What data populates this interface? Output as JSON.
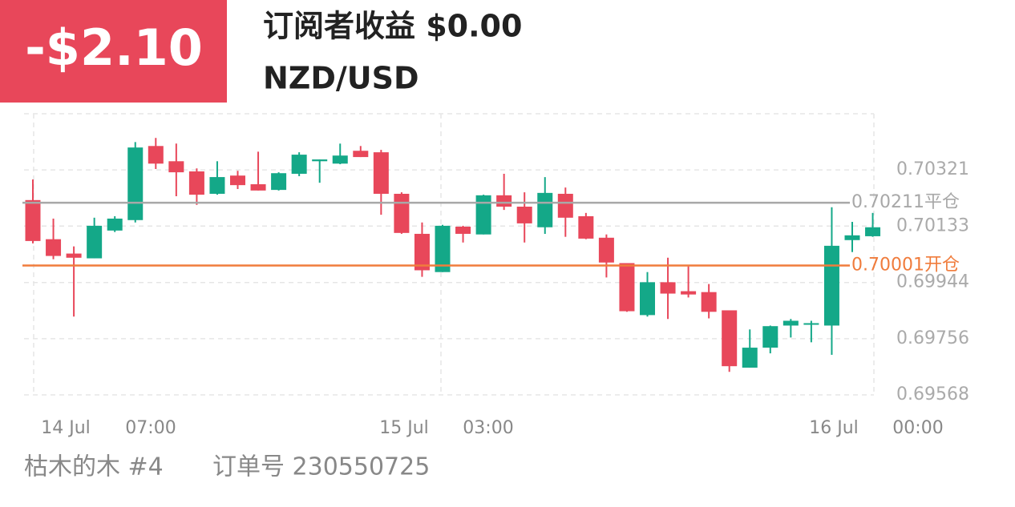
{
  "header": {
    "profit": "-$2.10",
    "title": "订阅者收益 $0.00",
    "symbol": "NZD/USD"
  },
  "footer": {
    "account": "枯木的木 #4",
    "order": "订单号 230550725"
  },
  "chart_data": {
    "type": "candlestick",
    "open": [
      0.7022,
      0.70089,
      0.70041,
      0.70025,
      0.70118,
      0.70153,
      0.70401,
      0.7035,
      0.70316,
      0.70241,
      0.70302,
      0.70273,
      0.70254,
      0.70308,
      0.7035,
      0.70342,
      0.70385,
      0.7038,
      0.70241,
      0.70107,
      0.69979,
      0.70131,
      0.70105,
      0.70236,
      0.70198,
      0.70129,
      0.70241,
      0.70166,
      0.70094,
      0.70009,
      0.69835,
      0.69945,
      0.69915,
      0.69912,
      0.69851,
      0.69659,
      0.69726,
      0.698,
      0.69803,
      0.698,
      0.70086,
      0.70099
    ],
    "high": [
      0.70289,
      0.70158,
      0.70065,
      0.70161,
      0.70166,
      0.70414,
      0.70428,
      0.70409,
      0.70326,
      0.7035,
      0.70318,
      0.70382,
      0.70313,
      0.7038,
      0.70356,
      0.70409,
      0.70401,
      0.70388,
      0.70246,
      0.70145,
      0.70137,
      0.70134,
      0.70238,
      0.70308,
      0.70246,
      0.70297,
      0.70262,
      0.70177,
      0.70105,
      0.70009,
      0.69979,
      0.70027,
      0.69998,
      0.69939,
      0.69851,
      0.69787,
      0.698,
      0.69822,
      0.69816,
      0.70196,
      0.70147,
      0.70177
    ],
    "low": [
      0.70075,
      0.70022,
      0.6983,
      0.70025,
      0.70113,
      0.70145,
      0.70324,
      0.70233,
      0.70204,
      0.70238,
      0.70257,
      0.70252,
      0.70252,
      0.703,
      0.70278,
      0.7034,
      0.70364,
      0.70171,
      0.70107,
      0.69963,
      0.69979,
      0.70078,
      0.70105,
      0.70187,
      0.70078,
      0.70107,
      0.70097,
      0.70089,
      0.69961,
      0.69846,
      0.6983,
      0.69822,
      0.69894,
      0.69824,
      0.69645,
      0.69659,
      0.69707,
      0.6976,
      0.69744,
      0.69702,
      0.70046,
      0.70097
    ],
    "close": [
      0.70083,
      0.70033,
      0.70027,
      0.70134,
      0.70158,
      0.70396,
      0.70342,
      0.70313,
      0.70238,
      0.70297,
      0.7027,
      0.70252,
      0.7031,
      0.70372,
      0.70356,
      0.70369,
      0.70364,
      0.70241,
      0.7011,
      0.69985,
      0.70134,
      0.70107,
      0.70236,
      0.70198,
      0.70142,
      0.70244,
      0.70161,
      0.70091,
      0.70011,
      0.69848,
      0.69945,
      0.69907,
      0.69904,
      0.69846,
      0.69664,
      0.69726,
      0.69798,
      0.69816,
      0.69808,
      0.70067,
      0.70102,
      0.70129
    ],
    "up_color": "#14a888",
    "down_color": "#e8475a",
    "ylim": [
      0.69568,
      0.70509
    ],
    "yticks": [
      0.69568,
      0.69756,
      0.69944,
      0.70133,
      0.70321
    ],
    "x_tick_labels": [
      "14 Jul",
      "07:00",
      "15 Jul",
      "03:00",
      "16 Jul",
      "00:00"
    ],
    "levels": [
      {
        "value": 0.70211,
        "label": "0.70211平仓",
        "color": "#a8a8a8"
      },
      {
        "value": 0.70001,
        "label": "0.70001开仓",
        "color": "#f07c3c"
      }
    ],
    "grid": true
  }
}
